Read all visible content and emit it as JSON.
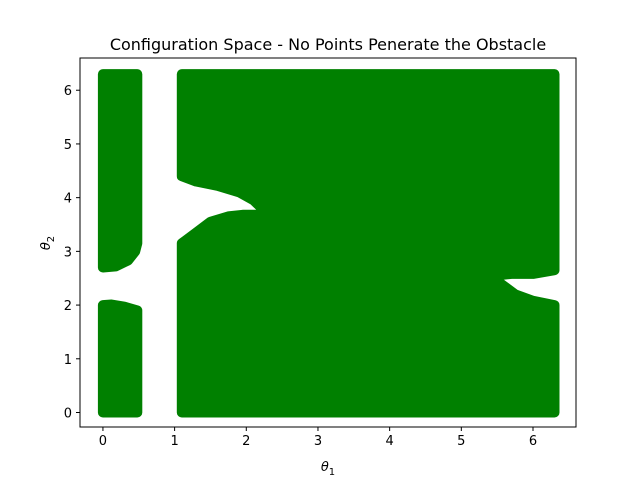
{
  "chart_data": {
    "type": "scatter",
    "title": "Configuration Space - No Points Penerate the Obstacle",
    "xlabel": "θ",
    "xlabel_sub": "1",
    "ylabel": "θ",
    "ylabel_sub": "2",
    "xlim": [
      -0.32,
      6.6
    ],
    "ylim": [
      -0.27,
      6.6
    ],
    "xticks": [
      0,
      1,
      2,
      3,
      4,
      5,
      6
    ],
    "yticks": [
      0,
      1,
      2,
      3,
      4,
      5,
      6
    ],
    "grid": false,
    "color": "#008000",
    "series": [
      {
        "region": "left-strip-lower",
        "polygon": [
          [
            0.0,
            0.0
          ],
          [
            0.0,
            2.0
          ],
          [
            0.12,
            2.01
          ],
          [
            0.3,
            1.97
          ],
          [
            0.48,
            1.9
          ],
          [
            0.48,
            0.0
          ]
        ]
      },
      {
        "region": "left-strip-upper",
        "polygon": [
          [
            0.0,
            2.7
          ],
          [
            0.18,
            2.72
          ],
          [
            0.35,
            2.83
          ],
          [
            0.45,
            3.0
          ],
          [
            0.48,
            3.15
          ],
          [
            0.48,
            6.3
          ],
          [
            0.0,
            6.3
          ]
        ]
      },
      {
        "region": "main-block",
        "polygon": [
          [
            1.1,
            0.0
          ],
          [
            6.3,
            0.0
          ],
          [
            6.3,
            2.0
          ],
          [
            6.0,
            2.08
          ],
          [
            5.75,
            2.2
          ],
          [
            5.55,
            2.4
          ],
          [
            5.48,
            2.55
          ],
          [
            5.7,
            2.58
          ],
          [
            6.0,
            2.58
          ],
          [
            6.3,
            2.65
          ],
          [
            6.3,
            6.3
          ],
          [
            1.1,
            6.3
          ],
          [
            1.1,
            4.4
          ],
          [
            1.3,
            4.3
          ],
          [
            1.6,
            4.22
          ],
          [
            1.9,
            4.1
          ],
          [
            2.1,
            3.95
          ],
          [
            2.25,
            3.76
          ],
          [
            2.2,
            3.68
          ],
          [
            1.95,
            3.68
          ],
          [
            1.75,
            3.65
          ],
          [
            1.5,
            3.55
          ],
          [
            1.3,
            3.35
          ],
          [
            1.15,
            3.2
          ],
          [
            1.1,
            3.15
          ]
        ]
      }
    ]
  }
}
